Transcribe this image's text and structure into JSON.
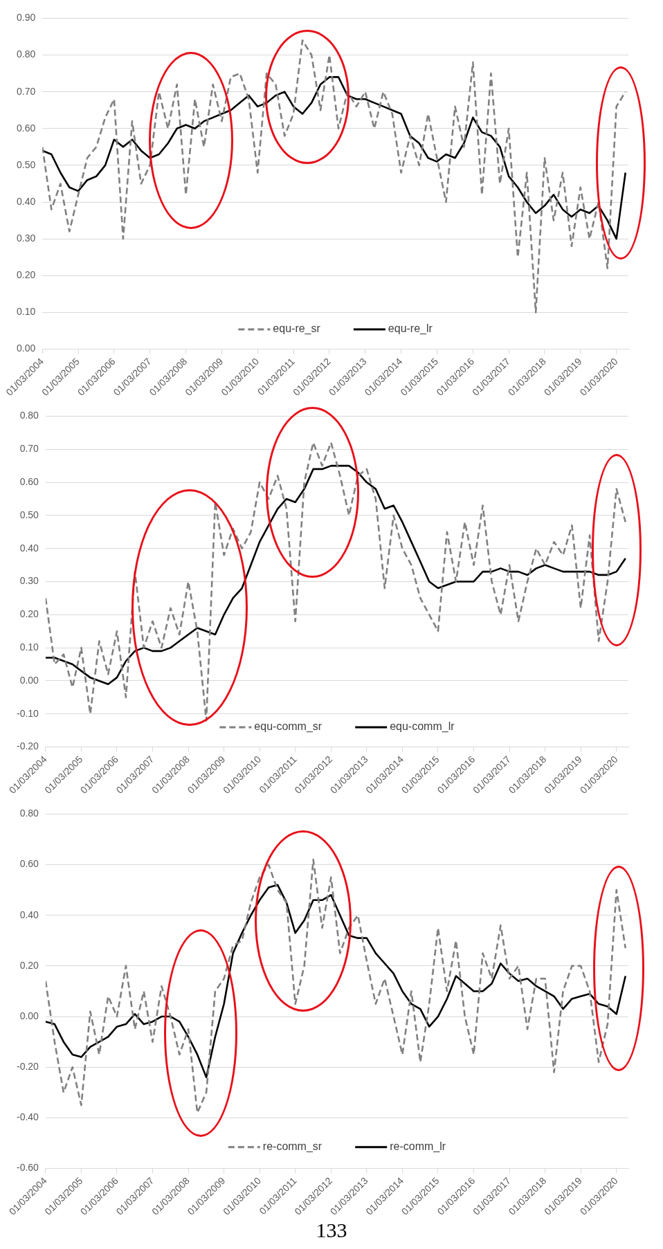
{
  "chart_data": [
    {
      "type": "line",
      "grid": "y",
      "legend": "bottom",
      "marker": "none",
      "x": [
        "2004-03",
        "2004-06",
        "2004-09",
        "2004-12",
        "2005-03",
        "2005-06",
        "2005-09",
        "2005-12",
        "2006-03",
        "2006-06",
        "2006-09",
        "2006-12",
        "2007-03",
        "2007-06",
        "2007-09",
        "2007-12",
        "2008-03",
        "2008-06",
        "2008-09",
        "2008-12",
        "2009-03",
        "2009-06",
        "2009-09",
        "2009-12",
        "2010-03",
        "2010-06",
        "2010-09",
        "2010-12",
        "2011-03",
        "2011-06",
        "2011-09",
        "2011-12",
        "2012-03",
        "2012-06",
        "2012-09",
        "2012-12",
        "2013-03",
        "2013-06",
        "2013-09",
        "2013-12",
        "2014-03",
        "2014-06",
        "2014-09",
        "2014-12",
        "2015-03",
        "2015-06",
        "2015-09",
        "2015-12",
        "2016-03",
        "2016-06",
        "2016-09",
        "2016-12",
        "2017-03",
        "2017-06",
        "2017-09",
        "2017-12",
        "2018-03",
        "2018-06",
        "2018-09",
        "2018-12",
        "2019-03",
        "2019-06",
        "2019-09",
        "2019-12",
        "2020-03",
        "2020-06"
      ],
      "xlim": [
        "2004-03",
        "2020-07"
      ],
      "xticks": [
        {
          "value": "2004-03",
          "label": "01/03/2004"
        },
        {
          "value": "2005-03",
          "label": "01/03/2005"
        },
        {
          "value": "2006-03",
          "label": "01/03/2006"
        },
        {
          "value": "2007-03",
          "label": "01/03/2007"
        },
        {
          "value": "2008-03",
          "label": "01/03/2008"
        },
        {
          "value": "2009-03",
          "label": "01/03/2009"
        },
        {
          "value": "2010-03",
          "label": "01/03/2010"
        },
        {
          "value": "2011-03",
          "label": "01/03/2011"
        },
        {
          "value": "2012-03",
          "label": "01/03/2012"
        },
        {
          "value": "2013-03",
          "label": "01/03/2013"
        },
        {
          "value": "2014-03",
          "label": "01/03/2014"
        },
        {
          "value": "2015-03",
          "label": "01/03/2015"
        },
        {
          "value": "2016-03",
          "label": "01/03/2016"
        },
        {
          "value": "2017-03",
          "label": "01/03/2017"
        },
        {
          "value": "2018-03",
          "label": "01/03/2018"
        },
        {
          "value": "2019-03",
          "label": "01/03/2019"
        },
        {
          "value": "2020-03",
          "label": "01/03/2020"
        }
      ],
      "ylim": [
        0,
        0.9
      ],
      "yticks": [
        {
          "value": 0,
          "label": "0.00"
        },
        {
          "value": 0.1,
          "label": "0.10"
        },
        {
          "value": 0.2,
          "label": "0.20"
        },
        {
          "value": 0.3,
          "label": "0.30"
        },
        {
          "value": 0.4,
          "label": "0.40"
        },
        {
          "value": 0.5,
          "label": "0.50"
        },
        {
          "value": 0.6,
          "label": "0.60"
        },
        {
          "value": 0.7,
          "label": "0.70"
        },
        {
          "value": 0.8,
          "label": "0.80"
        },
        {
          "value": 0.9,
          "label": "0.90"
        }
      ],
      "series": [
        {
          "name": "equ-re_sr",
          "color": "#808080",
          "line_style": "dashed",
          "values": [
            0.55,
            0.38,
            0.45,
            0.32,
            0.42,
            0.52,
            0.55,
            0.63,
            0.68,
            0.3,
            0.62,
            0.45,
            0.5,
            0.7,
            0.6,
            0.72,
            0.42,
            0.68,
            0.55,
            0.72,
            0.62,
            0.74,
            0.75,
            0.68,
            0.48,
            0.75,
            0.72,
            0.58,
            0.64,
            0.84,
            0.8,
            0.65,
            0.8,
            0.6,
            0.7,
            0.66,
            0.7,
            0.6,
            0.7,
            0.64,
            0.48,
            0.58,
            0.5,
            0.64,
            0.52,
            0.4,
            0.66,
            0.55,
            0.78,
            0.42,
            0.75,
            0.45,
            0.6,
            0.25,
            0.48,
            0.1,
            0.52,
            0.35,
            0.48,
            0.28,
            0.44,
            0.3,
            0.4,
            0.22,
            0.66,
            0.7
          ]
        },
        {
          "name": "equ-re_lr",
          "color": "#000000",
          "line_style": "solid",
          "values": [
            0.54,
            0.53,
            0.48,
            0.44,
            0.43,
            0.46,
            0.47,
            0.5,
            0.57,
            0.55,
            0.57,
            0.54,
            0.52,
            0.53,
            0.56,
            0.6,
            0.61,
            0.6,
            0.62,
            0.63,
            0.64,
            0.65,
            0.67,
            0.69,
            0.66,
            0.67,
            0.69,
            0.7,
            0.66,
            0.64,
            0.67,
            0.72,
            0.74,
            0.74,
            0.69,
            0.68,
            0.68,
            0.67,
            0.66,
            0.65,
            0.64,
            0.58,
            0.56,
            0.52,
            0.51,
            0.53,
            0.52,
            0.56,
            0.63,
            0.59,
            0.58,
            0.55,
            0.47,
            0.44,
            0.4,
            0.37,
            0.39,
            0.42,
            0.38,
            0.36,
            0.38,
            0.37,
            0.39,
            0.35,
            0.3,
            0.48
          ]
        }
      ]
    },
    {
      "type": "line",
      "grid": "y",
      "legend": "bottom",
      "marker": "none",
      "x": [
        "2004-03",
        "2004-06",
        "2004-09",
        "2004-12",
        "2005-03",
        "2005-06",
        "2005-09",
        "2005-12",
        "2006-03",
        "2006-06",
        "2006-09",
        "2006-12",
        "2007-03",
        "2007-06",
        "2007-09",
        "2007-12",
        "2008-03",
        "2008-06",
        "2008-09",
        "2008-12",
        "2009-03",
        "2009-06",
        "2009-09",
        "2009-12",
        "2010-03",
        "2010-06",
        "2010-09",
        "2010-12",
        "2011-03",
        "2011-06",
        "2011-09",
        "2011-12",
        "2012-03",
        "2012-06",
        "2012-09",
        "2012-12",
        "2013-03",
        "2013-06",
        "2013-09",
        "2013-12",
        "2014-03",
        "2014-06",
        "2014-09",
        "2014-12",
        "2015-03",
        "2015-06",
        "2015-09",
        "2015-12",
        "2016-03",
        "2016-06",
        "2016-09",
        "2016-12",
        "2017-03",
        "2017-06",
        "2017-09",
        "2017-12",
        "2018-03",
        "2018-06",
        "2018-09",
        "2018-12",
        "2019-03",
        "2019-06",
        "2019-09",
        "2019-12",
        "2020-03",
        "2020-06"
      ],
      "xlim": [
        "2004-03",
        "2020-07"
      ],
      "xticks": [
        {
          "value": "2004-03",
          "label": "01/03/2004"
        },
        {
          "value": "2005-03",
          "label": "01/03/2005"
        },
        {
          "value": "2006-03",
          "label": "01/03/2006"
        },
        {
          "value": "2007-03",
          "label": "01/03/2007"
        },
        {
          "value": "2008-03",
          "label": "01/03/2008"
        },
        {
          "value": "2009-03",
          "label": "01/03/2009"
        },
        {
          "value": "2010-03",
          "label": "01/03/2010"
        },
        {
          "value": "2011-03",
          "label": "01/03/2011"
        },
        {
          "value": "2012-03",
          "label": "01/03/2012"
        },
        {
          "value": "2013-03",
          "label": "01/03/2013"
        },
        {
          "value": "2014-03",
          "label": "01/03/2014"
        },
        {
          "value": "2015-03",
          "label": "01/03/2015"
        },
        {
          "value": "2016-03",
          "label": "01/03/2016"
        },
        {
          "value": "2017-03",
          "label": "01/03/2017"
        },
        {
          "value": "2018-03",
          "label": "01/03/2018"
        },
        {
          "value": "2019-03",
          "label": "01/03/2019"
        },
        {
          "value": "2020-03",
          "label": "01/03/2020"
        }
      ],
      "ylim": [
        -0.2,
        0.8
      ],
      "yticks": [
        {
          "value": -0.2,
          "label": "-0.20"
        },
        {
          "value": -0.1,
          "label": "-0.10"
        },
        {
          "value": 0,
          "label": "0.00"
        },
        {
          "value": 0.1,
          "label": "0.10"
        },
        {
          "value": 0.2,
          "label": "0.20"
        },
        {
          "value": 0.3,
          "label": "0.30"
        },
        {
          "value": 0.4,
          "label": "0.40"
        },
        {
          "value": 0.5,
          "label": "0.50"
        },
        {
          "value": 0.6,
          "label": "0.60"
        },
        {
          "value": 0.7,
          "label": "0.70"
        },
        {
          "value": 0.8,
          "label": "0.80"
        }
      ],
      "series": [
        {
          "name": "equ-comm_sr",
          "color": "#808080",
          "line_style": "dashed",
          "values": [
            0.25,
            0.05,
            0.08,
            -0.02,
            0.1,
            -0.1,
            0.12,
            0.02,
            0.15,
            -0.05,
            0.33,
            0.1,
            0.18,
            0.1,
            0.22,
            0.14,
            0.3,
            0.15,
            -0.12,
            0.54,
            0.38,
            0.46,
            0.4,
            0.45,
            0.6,
            0.55,
            0.62,
            0.52,
            0.18,
            0.6,
            0.72,
            0.65,
            0.72,
            0.62,
            0.5,
            0.62,
            0.64,
            0.55,
            0.28,
            0.5,
            0.4,
            0.35,
            0.25,
            0.2,
            0.15,
            0.45,
            0.3,
            0.48,
            0.35,
            0.53,
            0.3,
            0.2,
            0.35,
            0.18,
            0.3,
            0.4,
            0.35,
            0.42,
            0.38,
            0.47,
            0.22,
            0.44,
            0.12,
            0.3,
            0.58,
            0.48
          ]
        },
        {
          "name": "equ-comm_lr",
          "color": "#000000",
          "line_style": "solid",
          "values": [
            0.07,
            0.07,
            0.06,
            0.05,
            0.03,
            0.01,
            0.0,
            -0.01,
            0.01,
            0.06,
            0.09,
            0.1,
            0.09,
            0.09,
            0.1,
            0.12,
            0.14,
            0.16,
            0.15,
            0.14,
            0.2,
            0.25,
            0.28,
            0.35,
            0.42,
            0.47,
            0.52,
            0.55,
            0.54,
            0.58,
            0.64,
            0.64,
            0.65,
            0.65,
            0.65,
            0.63,
            0.6,
            0.58,
            0.52,
            0.53,
            0.48,
            0.42,
            0.36,
            0.3,
            0.28,
            0.29,
            0.3,
            0.3,
            0.3,
            0.33,
            0.33,
            0.34,
            0.33,
            0.33,
            0.32,
            0.34,
            0.35,
            0.34,
            0.33,
            0.33,
            0.33,
            0.33,
            0.32,
            0.32,
            0.33,
            0.37
          ]
        }
      ]
    },
    {
      "type": "line",
      "grid": "y",
      "legend": "bottom",
      "marker": "none",
      "annotations": [
        "133"
      ],
      "x": [
        "2004-03",
        "2004-06",
        "2004-09",
        "2004-12",
        "2005-03",
        "2005-06",
        "2005-09",
        "2005-12",
        "2006-03",
        "2006-06",
        "2006-09",
        "2006-12",
        "2007-03",
        "2007-06",
        "2007-09",
        "2007-12",
        "2008-03",
        "2008-06",
        "2008-09",
        "2008-12",
        "2009-03",
        "2009-06",
        "2009-09",
        "2009-12",
        "2010-03",
        "2010-06",
        "2010-09",
        "2010-12",
        "2011-03",
        "2011-06",
        "2011-09",
        "2011-12",
        "2012-03",
        "2012-06",
        "2012-09",
        "2012-12",
        "2013-03",
        "2013-06",
        "2013-09",
        "2013-12",
        "2014-03",
        "2014-06",
        "2014-09",
        "2014-12",
        "2015-03",
        "2015-06",
        "2015-09",
        "2015-12",
        "2016-03",
        "2016-06",
        "2016-09",
        "2016-12",
        "2017-03",
        "2017-06",
        "2017-09",
        "2017-12",
        "2018-03",
        "2018-06",
        "2018-09",
        "2018-12",
        "2019-03",
        "2019-06",
        "2019-09",
        "2019-12",
        "2020-03",
        "2020-06"
      ],
      "xlim": [
        "2004-03",
        "2020-07"
      ],
      "xticks": [
        {
          "value": "2004-03",
          "label": "01/03/2004"
        },
        {
          "value": "2005-03",
          "label": "01/03/2005"
        },
        {
          "value": "2006-03",
          "label": "01/03/2006"
        },
        {
          "value": "2007-03",
          "label": "01/03/2007"
        },
        {
          "value": "2008-03",
          "label": "01/03/2008"
        },
        {
          "value": "2009-03",
          "label": "01/03/2009"
        },
        {
          "value": "2010-03",
          "label": "01/03/2010"
        },
        {
          "value": "2011-03",
          "label": "01/03/2011"
        },
        {
          "value": "2012-03",
          "label": "01/03/2012"
        },
        {
          "value": "2013-03",
          "label": "01/03/2013"
        },
        {
          "value": "2014-03",
          "label": "01/03/2014"
        },
        {
          "value": "2015-03",
          "label": "01/03/2015"
        },
        {
          "value": "2016-03",
          "label": "01/03/2016"
        },
        {
          "value": "2017-03",
          "label": "01/03/2017"
        },
        {
          "value": "2018-03",
          "label": "01/03/2018"
        },
        {
          "value": "2019-03",
          "label": "01/03/2019"
        },
        {
          "value": "2020-03",
          "label": "01/03/2020"
        }
      ],
      "ylim": [
        -0.6,
        0.8
      ],
      "yticks": [
        {
          "value": -0.6,
          "label": "-0.60"
        },
        {
          "value": -0.4,
          "label": "-0.40"
        },
        {
          "value": -0.2,
          "label": "-0.20"
        },
        {
          "value": 0,
          "label": "0.00"
        },
        {
          "value": 0.2,
          "label": "0.20"
        },
        {
          "value": 0.4,
          "label": "0.40"
        },
        {
          "value": 0.6,
          "label": "0.60"
        },
        {
          "value": 0.8,
          "label": "0.80"
        }
      ],
      "series": [
        {
          "name": "re-comm_sr",
          "color": "#808080",
          "line_style": "dashed",
          "values": [
            0.14,
            -0.1,
            -0.3,
            -0.2,
            -0.35,
            0.02,
            -0.15,
            0.08,
            0.0,
            0.2,
            -0.05,
            0.1,
            -0.1,
            0.12,
            0.0,
            -0.15,
            -0.05,
            -0.38,
            -0.3,
            0.1,
            0.15,
            0.28,
            0.3,
            0.45,
            0.55,
            0.6,
            0.5,
            0.45,
            0.05,
            0.2,
            0.62,
            0.35,
            0.55,
            0.25,
            0.35,
            0.4,
            0.22,
            0.05,
            0.15,
            0.0,
            -0.15,
            0.1,
            -0.18,
            0.05,
            0.35,
            0.1,
            0.3,
            0.0,
            -0.15,
            0.25,
            0.15,
            0.36,
            0.15,
            0.2,
            -0.05,
            0.15,
            0.15,
            -0.22,
            0.1,
            0.2,
            0.2,
            0.1,
            -0.18,
            -0.03,
            0.5,
            0.27
          ]
        },
        {
          "name": "re-comm_lr",
          "color": "#000000",
          "line_style": "solid",
          "values": [
            -0.02,
            -0.03,
            -0.1,
            -0.15,
            -0.16,
            -0.12,
            -0.1,
            -0.08,
            -0.04,
            -0.03,
            0.01,
            -0.03,
            -0.02,
            0.0,
            0.0,
            -0.02,
            -0.08,
            -0.15,
            -0.24,
            -0.08,
            0.05,
            0.25,
            0.33,
            0.4,
            0.46,
            0.51,
            0.52,
            0.45,
            0.33,
            0.38,
            0.46,
            0.46,
            0.48,
            0.4,
            0.32,
            0.31,
            0.31,
            0.25,
            0.21,
            0.17,
            0.1,
            0.05,
            0.03,
            -0.04,
            0.0,
            0.07,
            0.16,
            0.13,
            0.1,
            0.1,
            0.13,
            0.21,
            0.17,
            0.14,
            0.15,
            0.12,
            0.1,
            0.08,
            0.03,
            0.07,
            0.08,
            0.09,
            0.05,
            0.04,
            0.01,
            0.16
          ]
        }
      ]
    }
  ]
}
